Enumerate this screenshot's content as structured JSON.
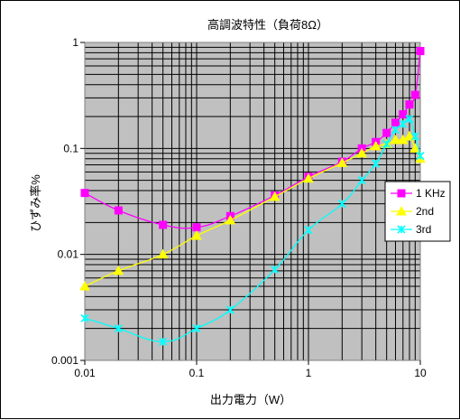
{
  "chart_data": {
    "type": "line",
    "title": "高調波特性（負荷8Ω）",
    "xlabel": "出力電力（W）",
    "ylabel": "ひずみ率%",
    "x_scale": "log",
    "y_scale": "log",
    "xlim": [
      0.01,
      10
    ],
    "ylim": [
      0.001,
      1
    ],
    "x_tick_labels": [
      "0.01",
      "0.1",
      "1",
      "10"
    ],
    "y_tick_labels": [
      "0.001",
      "0.01",
      "0.1",
      "1"
    ],
    "grid": true,
    "legend_position": "right",
    "plot_background": "#c0c0c0",
    "series": [
      {
        "name": "1 KHz",
        "color": "#ff00ff",
        "marker": "square",
        "points": [
          [
            0.01,
            0.038
          ],
          [
            0.02,
            0.026
          ],
          [
            0.05,
            0.019
          ],
          [
            0.1,
            0.018
          ],
          [
            0.2,
            0.023
          ],
          [
            0.5,
            0.036
          ],
          [
            1,
            0.054
          ],
          [
            2,
            0.075
          ],
          [
            3,
            0.1
          ],
          [
            4,
            0.115
          ],
          [
            5,
            0.14
          ],
          [
            6,
            0.175
          ],
          [
            7,
            0.21
          ],
          [
            8,
            0.26
          ],
          [
            9,
            0.32
          ],
          [
            10,
            0.83
          ]
        ]
      },
      {
        "name": "2nd",
        "color": "#ffff00",
        "marker": "triangle",
        "points": [
          [
            0.01,
            0.005
          ],
          [
            0.02,
            0.007
          ],
          [
            0.05,
            0.01
          ],
          [
            0.1,
            0.015
          ],
          [
            0.2,
            0.021
          ],
          [
            0.5,
            0.035
          ],
          [
            1,
            0.052
          ],
          [
            2,
            0.073
          ],
          [
            3,
            0.09
          ],
          [
            4,
            0.105
          ],
          [
            5,
            0.11
          ],
          [
            6,
            0.12
          ],
          [
            7,
            0.12
          ],
          [
            8,
            0.13
          ],
          [
            9,
            0.1
          ],
          [
            10,
            0.08
          ]
        ]
      },
      {
        "name": "3rd",
        "color": "#00ffff",
        "marker": "x-star",
        "points": [
          [
            0.01,
            0.0025
          ],
          [
            0.02,
            0.002
          ],
          [
            0.05,
            0.0015
          ],
          [
            0.1,
            0.002
          ],
          [
            0.2,
            0.003
          ],
          [
            0.5,
            0.0072
          ],
          [
            1,
            0.017
          ],
          [
            2,
            0.03
          ],
          [
            3,
            0.05
          ],
          [
            4,
            0.072
          ],
          [
            5,
            0.11
          ],
          [
            6,
            0.15
          ],
          [
            7,
            0.17
          ],
          [
            8,
            0.19
          ],
          [
            9,
            0.13
          ],
          [
            10,
            0.085
          ]
        ]
      }
    ]
  }
}
